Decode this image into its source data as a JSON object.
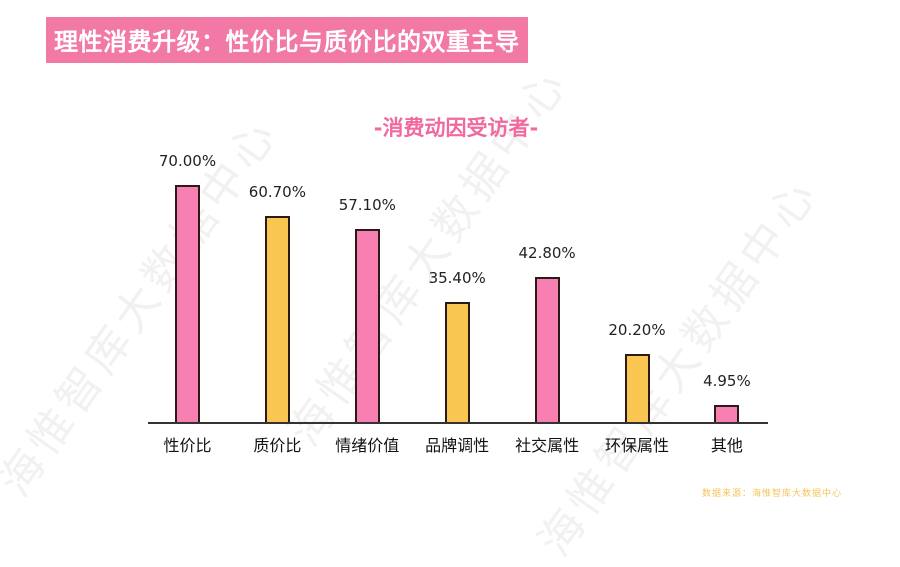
{
  "header": {
    "title": "理性消费升级：性价比与质价比的双重主导",
    "title_bg_color": "#f279a5"
  },
  "chart_data": {
    "type": "bar",
    "title": "-消费动因受访者-",
    "categories": [
      "性价比",
      "质价比",
      "情绪价值",
      "品牌调性",
      "社交属性",
      "环保属性",
      "其他"
    ],
    "values": [
      70.0,
      60.7,
      57.1,
      35.4,
      42.8,
      20.2,
      4.95
    ],
    "value_labels": [
      "70.00%",
      "60.70%",
      "57.10%",
      "35.40%",
      "42.80%",
      "20.20%",
      "4.95%"
    ],
    "bar_colors": [
      "#f77fb1",
      "#f8c651",
      "#f77fb1",
      "#f8c651",
      "#f77fb1",
      "#f8c651",
      "#f77fb1"
    ],
    "xlabel": "",
    "ylabel": "",
    "ylim": [
      0,
      100
    ],
    "grid": false,
    "legend": "none",
    "unit": "%"
  },
  "footer": {
    "source": "数据来源：海惟智库大数据中心"
  },
  "watermark": {
    "text": "海惟智库大数据中心"
  }
}
